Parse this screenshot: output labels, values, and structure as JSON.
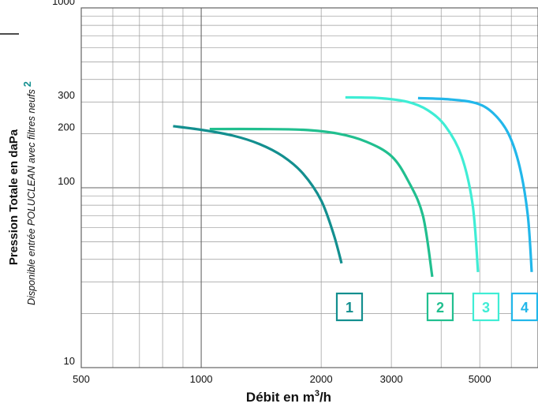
{
  "chart_data": {
    "type": "line",
    "title": "",
    "xlabel": "Débit en m",
    "xlabel_sup": "3",
    "xlabel_suffix": "/h",
    "ylabel": "Pression Totale en daPa",
    "ylabel_sub": "Disponible entrée POLUCLEAN avec filtres neufs",
    "ylabel_sub_sup": "2",
    "x_scale": "log",
    "y_scale": "log",
    "xlim": [
      500,
      7000
    ],
    "ylim": [
      10,
      1000
    ],
    "x_ticks": [
      500,
      1000,
      2000,
      3000,
      5000
    ],
    "x_tick_labels": [
      "500",
      "1000",
      "2000",
      "3000",
      "5000"
    ],
    "y_ticks": [
      10,
      100,
      200,
      300,
      1000
    ],
    "y_tick_labels": [
      "10",
      "100",
      "200",
      "300",
      "1000"
    ],
    "grid": true,
    "series": [
      {
        "name": "1",
        "color": "#138f8f",
        "x": [
          850,
          1000,
          1200,
          1400,
          1600,
          1800,
          2000,
          2150,
          2250
        ],
        "y": [
          220,
          210,
          195,
          175,
          150,
          120,
          85,
          55,
          38
        ]
      },
      {
        "name": "2",
        "color": "#21bf8f",
        "x": [
          1050,
          1400,
          1800,
          2200,
          2600,
          3000,
          3300,
          3600,
          3800
        ],
        "y": [
          212,
          212,
          210,
          200,
          180,
          150,
          110,
          70,
          32
        ]
      },
      {
        "name": "3",
        "color": "#3fedd5",
        "x": [
          2300,
          2800,
          3300,
          3700,
          4100,
          4500,
          4800,
          4950
        ],
        "y": [
          318,
          315,
          300,
          270,
          220,
          150,
          80,
          34
        ]
      },
      {
        "name": "4",
        "color": "#22b7ea",
        "x": [
          3500,
          4200,
          4900,
          5400,
          5900,
          6300,
          6600,
          6750
        ],
        "y": [
          315,
          310,
          295,
          260,
          200,
          130,
          70,
          34
        ]
      }
    ]
  }
}
